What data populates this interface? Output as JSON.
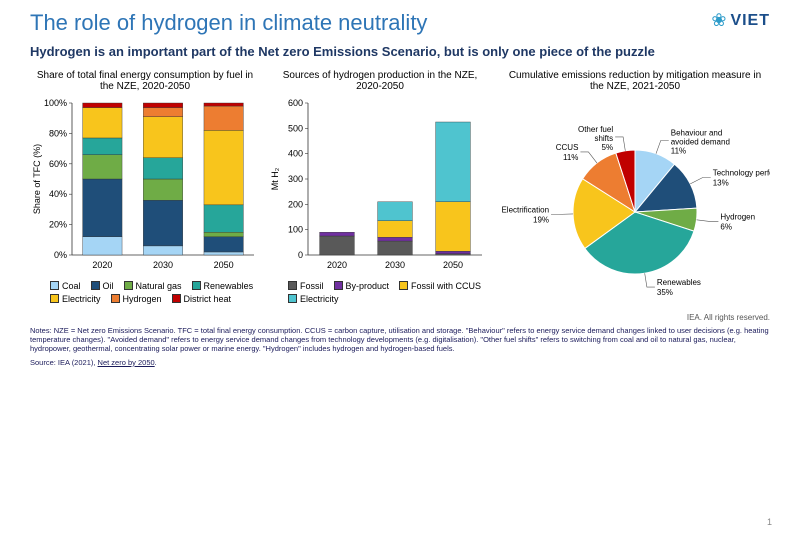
{
  "title": "The role of hydrogen in climate neutrality",
  "title_color": "#2e75b6",
  "subtitle": "Hydrogen is an important part of the Net zero Emissions Scenario, but is only one piece of the puzzle",
  "subtitle_color": "#1f3864",
  "logo": {
    "text": "VIET",
    "icon_color": "#2e9cca",
    "text_color": "#1b4e8a"
  },
  "chart1": {
    "title": "Share of total final energy consumption by fuel in the NZE, 2020-2050",
    "type": "stacked-bar-100",
    "ylabel": "Share of TFC (%)",
    "categories": [
      "2020",
      "2030",
      "2050"
    ],
    "ylim": [
      0,
      100
    ],
    "ytick_step": 20,
    "series_order": [
      "Coal",
      "Oil",
      "Natural gas",
      "Renewables",
      "Electricity",
      "Hydrogen",
      "District heat"
    ],
    "colors": {
      "Coal": "#a5d5f5",
      "Oil": "#1f4e79",
      "Natural gas": "#6fac46",
      "Renewables": "#26a69a",
      "Electricity": "#f8c51c",
      "Hydrogen": "#ed7d31",
      "District heat": "#c00000"
    },
    "data": {
      "2020": {
        "Coal": 12,
        "Oil": 38,
        "Natural gas": 16,
        "Renewables": 11,
        "Electricity": 20,
        "Hydrogen": 0,
        "District heat": 3
      },
      "2030": {
        "Coal": 6,
        "Oil": 30,
        "Natural gas": 14,
        "Renewables": 14,
        "Electricity": 27,
        "Hydrogen": 6,
        "District heat": 3
      },
      "2050": {
        "Coal": 2,
        "Oil": 10,
        "Natural gas": 3,
        "Renewables": 18,
        "Electricity": 49,
        "Hydrogen": 16,
        "District heat": 2
      }
    }
  },
  "chart2": {
    "title": "Sources of hydrogen production in the NZE, 2020-2050",
    "type": "stacked-bar",
    "ylabel": "Mt H₂",
    "categories": [
      "2020",
      "2030",
      "2050"
    ],
    "ylim": [
      0,
      600
    ],
    "ytick_step": 100,
    "series_order": [
      "Fossil",
      "By-product",
      "Fossil with CCUS",
      "Electricity"
    ],
    "colors": {
      "Fossil": "#595959",
      "By-product": "#7030a0",
      "Fossil with CCUS": "#f8c51c",
      "Electricity": "#4fc4cf"
    },
    "data": {
      "2020": {
        "Fossil": 75,
        "By-product": 15,
        "Fossil with CCUS": 0,
        "Electricity": 0
      },
      "2030": {
        "Fossil": 55,
        "By-product": 15,
        "Fossil with CCUS": 65,
        "Electricity": 75
      },
      "2050": {
        "Fossil": 5,
        "By-product": 10,
        "Fossil with CCUS": 195,
        "Electricity": 315
      }
    }
  },
  "chart3": {
    "title": "Cumulative emissions reduction by mitigation measure in the NZE, 2021-2050",
    "type": "pie",
    "slices": [
      {
        "label": "Behaviour and avoided demand",
        "pct": 11,
        "color": "#a5d5f5"
      },
      {
        "label": "Technology performance",
        "pct": 13,
        "color": "#1f4e79"
      },
      {
        "label": "Hydrogen",
        "pct": 6,
        "color": "#6fac46"
      },
      {
        "label": "Renewables",
        "pct": 35,
        "color": "#26a69a"
      },
      {
        "label": "Electrification",
        "pct": 19,
        "color": "#f8c51c"
      },
      {
        "label": "CCUS",
        "pct": 11,
        "color": "#ed7d31"
      },
      {
        "label": "Other fuel shifts",
        "pct": 5,
        "color": "#c00000"
      }
    ]
  },
  "attribution": "IEA. All rights reserved.",
  "notes": "Notes: NZE = Net zero Emissions Scenario. TFC = total final energy consumption. CCUS = carbon capture, utilisation and storage. \"Behaviour\" refers to energy service demand changes linked to user decisions (e.g. heating temperature changes). \"Avoided demand\" refers to energy service demand changes from technology developments (e.g. digitalisation). \"Other fuel shifts\" refers to switching from coal and oil to natural gas, nuclear, hydropower, geothermal, concentrating solar power or marine energy. \"Hydrogen\" includes hydrogen and hydrogen-based fuels.",
  "source_prefix": "Source: IEA (2021), ",
  "source_link": "Net zero by 2050",
  "page_number": "1"
}
